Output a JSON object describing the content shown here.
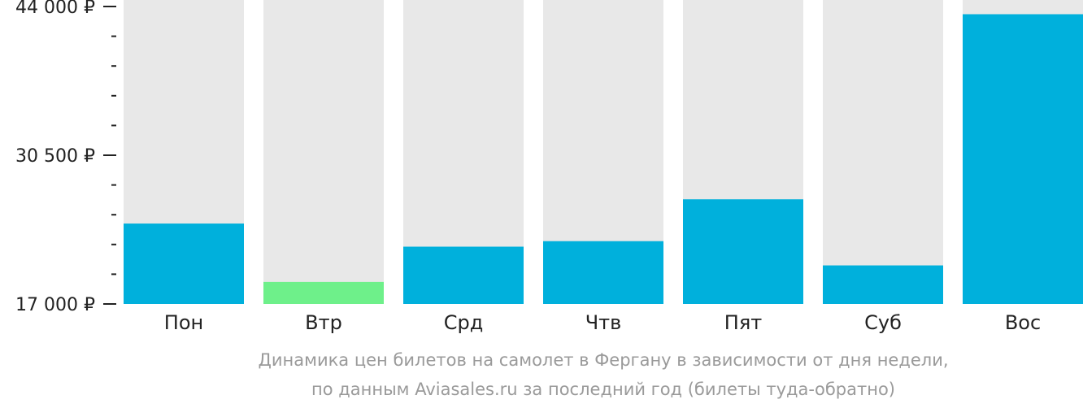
{
  "chart_data": {
    "type": "bar",
    "categories": [
      "Пон",
      "Втр",
      "Срд",
      "Чтв",
      "Пят",
      "Суб",
      "Вос"
    ],
    "values": [
      24300,
      19000,
      22200,
      22700,
      26500,
      20500,
      43300
    ],
    "highlight_index": 1,
    "ylim": [
      17000,
      44000
    ],
    "y_ticks": [
      {
        "value": 17000,
        "label": "17 000 ₽"
      },
      {
        "value": 30500,
        "label": "30 500 ₽"
      },
      {
        "value": 44000,
        "label": "44 000 ₽"
      }
    ],
    "minor_ticks_per_interval": 5,
    "title": "",
    "xlabel": "",
    "ylabel": "",
    "grid": false,
    "legend": "none"
  },
  "caption": {
    "line1": "Динамика цен билетов на самолет в Фергану в зависимости от дня недели,",
    "line2": "по данным Aviasales.ru за последний год (билеты туда-обратно)"
  },
  "colors": {
    "bar": "#00b0dc",
    "bar_highlight": "#6ef08a",
    "track": "#e8e8e8",
    "axis": "#222222",
    "caption": "#9a9a9a"
  }
}
